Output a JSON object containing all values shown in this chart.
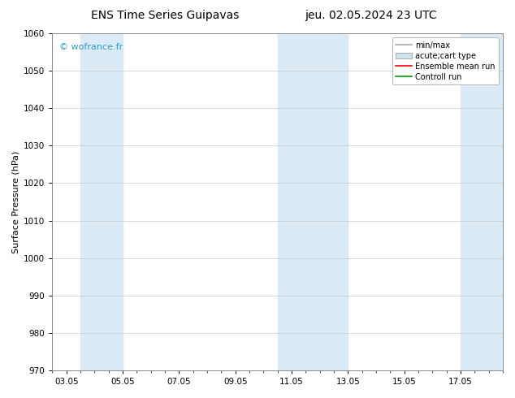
{
  "title_left": "ENS Time Series Guipavas",
  "title_right": "jeu. 02.05.2024 23 UTC",
  "ylabel": "Surface Pressure (hPa)",
  "ylim": [
    970,
    1060
  ],
  "yticks": [
    970,
    980,
    990,
    1000,
    1010,
    1020,
    1030,
    1040,
    1050,
    1060
  ],
  "xtick_labels": [
    "03.05",
    "05.05",
    "07.05",
    "09.05",
    "11.05",
    "13.05",
    "15.05",
    "17.05"
  ],
  "xtick_values": [
    0,
    2,
    4,
    6,
    8,
    10,
    12,
    14
  ],
  "xlim": [
    -0.5,
    15.5
  ],
  "shade_regions": [
    {
      "xmin": 0.5,
      "xmax": 2.0,
      "color": "#daeaf7"
    },
    {
      "xmin": 7.5,
      "xmax": 10.0,
      "color": "#daeaf7"
    },
    {
      "xmin": 14.0,
      "xmax": 15.5,
      "color": "#daeaf7"
    }
  ],
  "watermark": "© wofrance.fr",
  "watermark_color": "#3399cc",
  "legend_items": [
    {
      "label": "min/max",
      "type": "errorbar"
    },
    {
      "label": "acute;cart type",
      "type": "patch"
    },
    {
      "label": "Ensemble mean run",
      "color": "#ff0000",
      "type": "line"
    },
    {
      "label": "Controll run",
      "color": "#009900",
      "type": "line"
    }
  ],
  "bg_color": "#ffffff",
  "plot_bg_color": "#ffffff",
  "grid_color": "#c8c8c8",
  "title_fontsize": 10,
  "ylabel_fontsize": 8,
  "tick_fontsize": 7.5,
  "watermark_fontsize": 8,
  "legend_fontsize": 7
}
